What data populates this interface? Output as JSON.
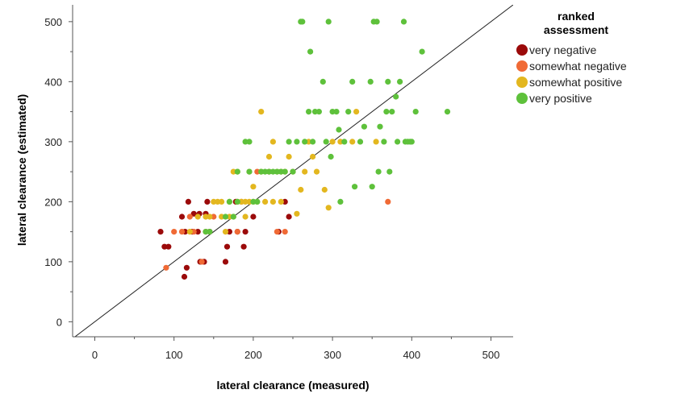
{
  "chart_data": {
    "type": "scatter",
    "xlabel": "lateral clearance (measured)",
    "ylabel": "lateral clearance (estimated)",
    "xlim": [
      -28,
      528
    ],
    "ylim": [
      -25,
      528
    ],
    "xticks": [
      0,
      100,
      200,
      300,
      400,
      500
    ],
    "yticks": [
      0,
      100,
      200,
      300,
      400,
      500
    ],
    "reference_line": "y = x",
    "grid": false,
    "legend": {
      "title_lines": [
        "ranked",
        "assessment"
      ],
      "position": "top-right"
    },
    "series": [
      {
        "name": "very negative",
        "color": "#9b0a0a",
        "points": [
          [
            83,
            150
          ],
          [
            88,
            125
          ],
          [
            93,
            125
          ],
          [
            110,
            175
          ],
          [
            113,
            75
          ],
          [
            116,
            90
          ],
          [
            114,
            150
          ],
          [
            118,
            200
          ],
          [
            123,
            150
          ],
          [
            125,
            180
          ],
          [
            130,
            150
          ],
          [
            132,
            180
          ],
          [
            133,
            100
          ],
          [
            138,
            100
          ],
          [
            140,
            180
          ],
          [
            142,
            200
          ],
          [
            145,
            150
          ],
          [
            165,
            100
          ],
          [
            167,
            125
          ],
          [
            170,
            150
          ],
          [
            178,
            200
          ],
          [
            180,
            150
          ],
          [
            188,
            125
          ],
          [
            190,
            150
          ],
          [
            200,
            175
          ],
          [
            232,
            150
          ],
          [
            240,
            200
          ],
          [
            245,
            175
          ]
        ]
      },
      {
        "name": "somewhat negative",
        "color": "#f06a35",
        "points": [
          [
            90,
            90
          ],
          [
            100,
            150
          ],
          [
            110,
            150
          ],
          [
            120,
            175
          ],
          [
            125,
            150
          ],
          [
            135,
            100
          ],
          [
            140,
            150
          ],
          [
            150,
            175
          ],
          [
            180,
            150
          ],
          [
            185,
            200
          ],
          [
            205,
            250
          ],
          [
            220,
            250
          ],
          [
            230,
            150
          ],
          [
            240,
            150
          ],
          [
            370,
            200
          ]
        ]
      },
      {
        "name": "somewhat positive",
        "color": "#e3b71f",
        "points": [
          [
            120,
            150
          ],
          [
            130,
            175
          ],
          [
            140,
            175
          ],
          [
            145,
            175
          ],
          [
            150,
            200
          ],
          [
            155,
            200
          ],
          [
            160,
            200
          ],
          [
            165,
            150
          ],
          [
            170,
            200
          ],
          [
            175,
            175
          ],
          [
            175,
            250
          ],
          [
            180,
            200
          ],
          [
            180,
            250
          ],
          [
            185,
            200
          ],
          [
            190,
            200
          ],
          [
            195,
            200
          ],
          [
            195,
            250
          ],
          [
            200,
            225
          ],
          [
            200,
            200
          ],
          [
            205,
            200
          ],
          [
            210,
            350
          ],
          [
            210,
            250
          ],
          [
            215,
            200
          ],
          [
            220,
            275
          ],
          [
            225,
            300
          ],
          [
            230,
            250
          ],
          [
            235,
            200
          ],
          [
            240,
            250
          ],
          [
            245,
            275
          ],
          [
            250,
            250
          ],
          [
            255,
            180
          ],
          [
            260,
            220
          ],
          [
            265,
            250
          ],
          [
            270,
            300
          ],
          [
            275,
            275
          ],
          [
            280,
            250
          ],
          [
            290,
            220
          ],
          [
            295,
            190
          ],
          [
            300,
            300
          ],
          [
            310,
            300
          ],
          [
            325,
            300
          ],
          [
            330,
            350
          ],
          [
            355,
            300
          ],
          [
            160,
            175
          ],
          [
            170,
            175
          ],
          [
            190,
            175
          ],
          [
            225,
            200
          ],
          [
            235,
            250
          ]
        ]
      },
      {
        "name": "very positive",
        "color": "#5ec13b",
        "points": [
          [
            140,
            150
          ],
          [
            145,
            150
          ],
          [
            165,
            175
          ],
          [
            170,
            200
          ],
          [
            175,
            175
          ],
          [
            180,
            200
          ],
          [
            180,
            250
          ],
          [
            190,
            300
          ],
          [
            195,
            300
          ],
          [
            195,
            250
          ],
          [
            200,
            200
          ],
          [
            205,
            200
          ],
          [
            210,
            250
          ],
          [
            215,
            250
          ],
          [
            220,
            250
          ],
          [
            225,
            250
          ],
          [
            230,
            250
          ],
          [
            235,
            250
          ],
          [
            240,
            250
          ],
          [
            245,
            300
          ],
          [
            250,
            250
          ],
          [
            255,
            300
          ],
          [
            260,
            500
          ],
          [
            262,
            500
          ],
          [
            265,
            300
          ],
          [
            270,
            350
          ],
          [
            272,
            450
          ],
          [
            275,
            300
          ],
          [
            278,
            350
          ],
          [
            283,
            350
          ],
          [
            288,
            400
          ],
          [
            292,
            300
          ],
          [
            295,
            500
          ],
          [
            298,
            275
          ],
          [
            300,
            350
          ],
          [
            305,
            350
          ],
          [
            308,
            320
          ],
          [
            310,
            200
          ],
          [
            315,
            300
          ],
          [
            320,
            350
          ],
          [
            325,
            400
          ],
          [
            328,
            225
          ],
          [
            335,
            300
          ],
          [
            340,
            325
          ],
          [
            348,
            400
          ],
          [
            350,
            225
          ],
          [
            352,
            500
          ],
          [
            356,
            500
          ],
          [
            358,
            250
          ],
          [
            360,
            325
          ],
          [
            365,
            300
          ],
          [
            368,
            350
          ],
          [
            370,
            400
          ],
          [
            372,
            250
          ],
          [
            375,
            350
          ],
          [
            380,
            375
          ],
          [
            382,
            300
          ],
          [
            385,
            400
          ],
          [
            390,
            500
          ],
          [
            392,
            300
          ],
          [
            395,
            300
          ],
          [
            398,
            300
          ],
          [
            400,
            300
          ],
          [
            405,
            350
          ],
          [
            413,
            450
          ],
          [
            445,
            350
          ]
        ]
      }
    ]
  }
}
